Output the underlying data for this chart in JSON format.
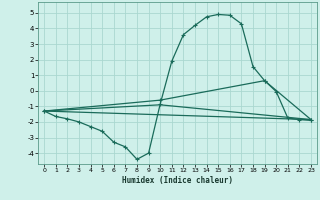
{
  "xlabel": "Humidex (Indice chaleur)",
  "xlim": [
    -0.5,
    23.5
  ],
  "ylim": [
    -4.7,
    5.7
  ],
  "xticks": [
    0,
    1,
    2,
    3,
    4,
    5,
    6,
    7,
    8,
    9,
    10,
    11,
    12,
    13,
    14,
    15,
    16,
    17,
    18,
    19,
    20,
    21,
    22,
    23
  ],
  "yticks": [
    -4,
    -3,
    -2,
    -1,
    0,
    1,
    2,
    3,
    4,
    5
  ],
  "bg_color": "#cff0ea",
  "grid_color": "#aad8d0",
  "line_color": "#1a6b5a",
  "series1_x": [
    0,
    1,
    2,
    3,
    4,
    5,
    6,
    7,
    8,
    9,
    10,
    11,
    12,
    13,
    14,
    15,
    16,
    17,
    18,
    19,
    20,
    21,
    22,
    23
  ],
  "series1_y": [
    -1.3,
    -1.65,
    -1.8,
    -2.0,
    -2.3,
    -2.6,
    -3.3,
    -3.6,
    -4.4,
    -4.0,
    -0.85,
    1.9,
    3.6,
    4.2,
    4.75,
    4.9,
    4.85,
    4.3,
    1.55,
    0.65,
    -0.05,
    -1.75,
    -1.85,
    -1.9
  ],
  "series2_x": [
    0,
    10,
    19,
    23
  ],
  "series2_y": [
    -1.3,
    -0.6,
    0.65,
    -1.85
  ],
  "series3_x": [
    0,
    10,
    23
  ],
  "series3_y": [
    -1.3,
    -0.9,
    -1.85
  ],
  "series4_x": [
    0,
    23
  ],
  "series4_y": [
    -1.3,
    -1.85
  ]
}
